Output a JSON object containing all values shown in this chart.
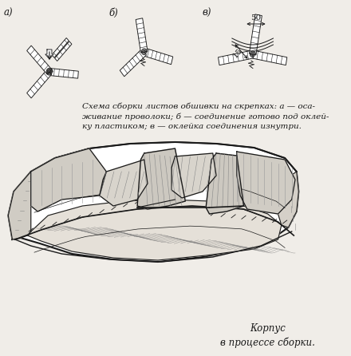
{
  "bg_color": "#f0ede8",
  "title_a": "а)",
  "title_b": "б)",
  "title_v": "в)",
  "caption": "Схема сборки листов обшивки на скрепках: а — оса-\nживание проволоки; б — соединение готово под оклей-\nку пластиком; в — оклейка соединения изнутри.",
  "caption2": "Корпус\nв процессе сборки.",
  "dim_50": "50",
  "dim_15": "15",
  "line_color": "#1a1a1a",
  "text_color": "#111111"
}
